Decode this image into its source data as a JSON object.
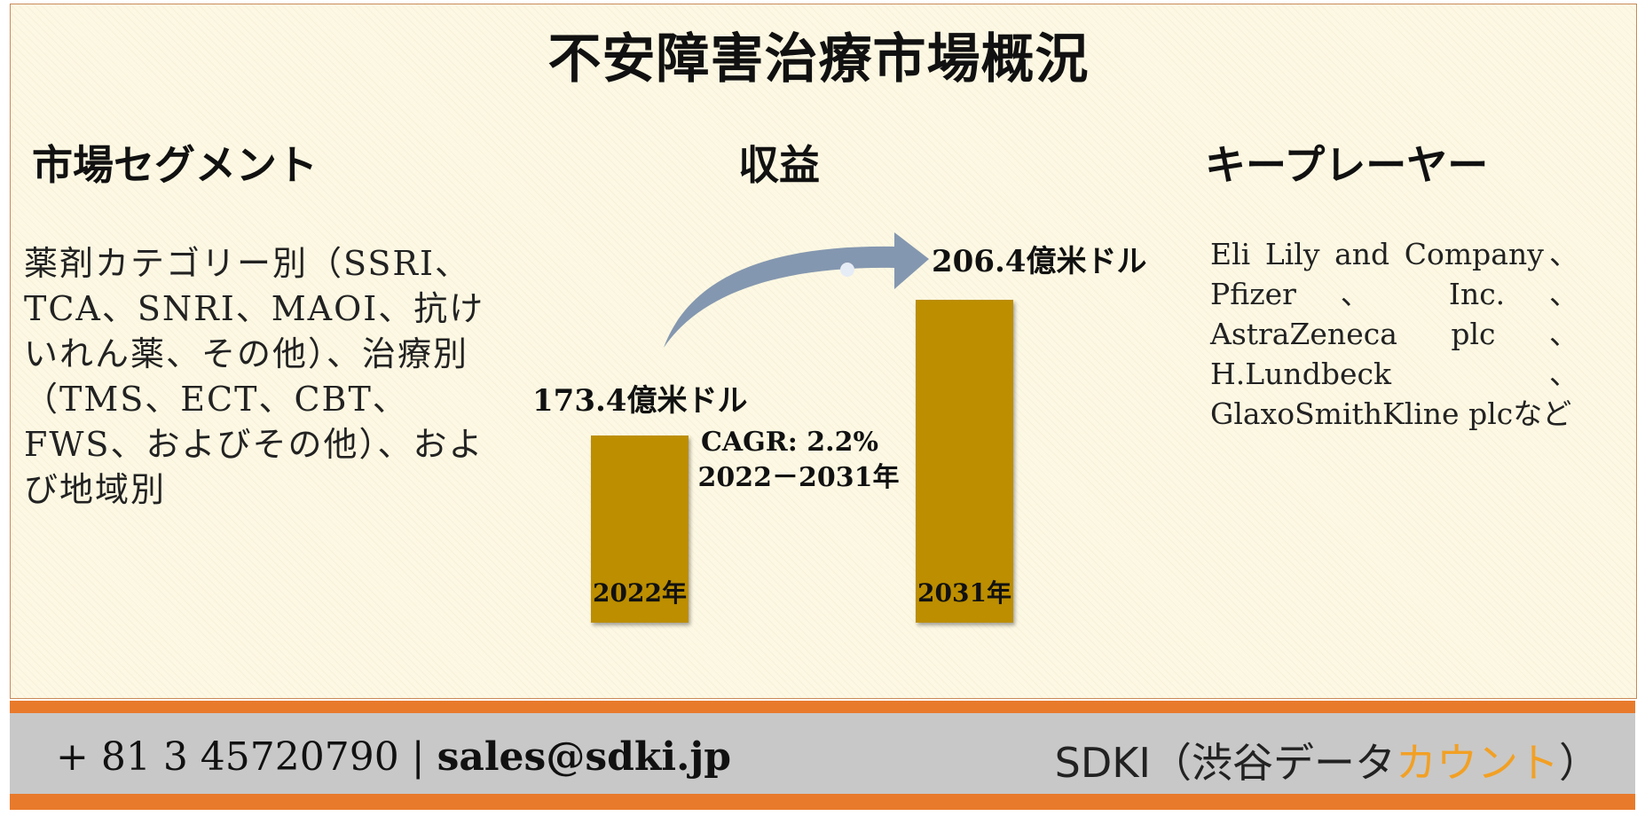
{
  "title": "不安障害治療市場概況",
  "headings": {
    "segments": "市場セグメント",
    "revenue": "収益",
    "players": "キープレーヤー"
  },
  "segments_text": "薬剤カテゴリー別（SSRI、TCA、SNRI、MAOI、抗けいれん薬、その他）、治療別（TMS、ECT、CBT、FWS、およびその他）、および地域別",
  "players": [
    "Eli Lily and Company、",
    "Pfizer 、 Inc. 、",
    "AstraZeneca plc 、",
    "H.Lundbeck 、",
    "GlaxoSmithKline plcなど"
  ],
  "chart_data": {
    "type": "bar",
    "categories": [
      "2022年",
      "2031年"
    ],
    "values": [
      173.4,
      206.4
    ],
    "value_labels": [
      "173.4億米ドル",
      "206.4億米ドル"
    ],
    "annotation": [
      "CAGR: 2.2%",
      "2022－2031年"
    ],
    "bar_color": "#bc8e00",
    "arrow_color": "#8497b0"
  },
  "footer": {
    "phone": "+ 81 3 45720790 | ",
    "email": "sales@sdki.jp",
    "brand_main": "SDKI（渋谷データ",
    "brand_accent": "カウント",
    "brand_end": "）"
  },
  "colors": {
    "background": "#fdf8e3",
    "footer_bar": "#e87a2b",
    "footer_band": "#c8c8c8",
    "accent": "#f2a024"
  }
}
